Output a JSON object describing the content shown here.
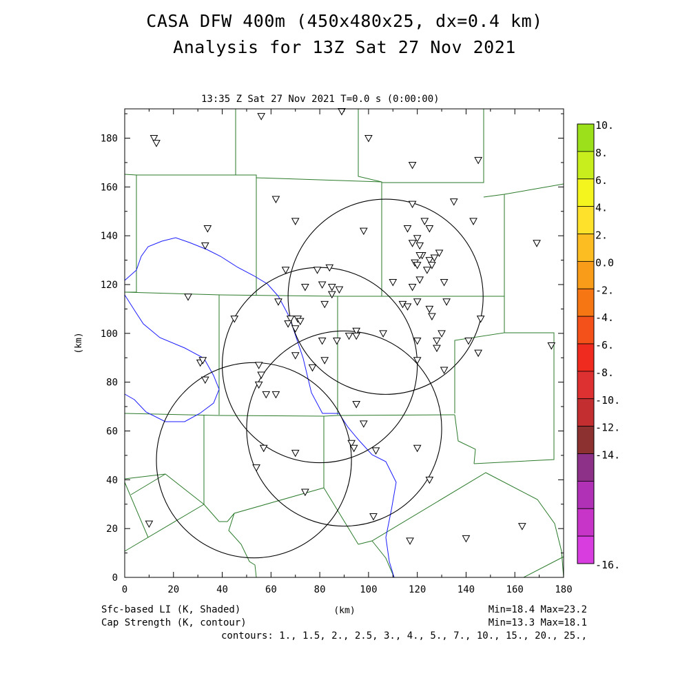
{
  "title_line1": "CASA DFW 400m (450x480x25, dx=0.4 km)",
  "title_line2": "Analysis for 13Z Sat 27 Nov 2021",
  "valid_time": "13:35 Z Sat 27 Nov 2021    T=0.0 s (0:00:00)",
  "x_label": "(km)",
  "y_label": "(km)",
  "x_ticks": [
    "0",
    "20",
    "40",
    "60",
    "80",
    "100",
    "120",
    "140",
    "160",
    "180"
  ],
  "y_ticks": [
    "0",
    "20",
    "40",
    "60",
    "80",
    "100",
    "120",
    "140",
    "160",
    "180"
  ],
  "colorbar_labels": [
    "10.",
    "8.",
    "6.",
    "4.",
    "2.",
    "0.0",
    "-2.",
    "-4.",
    "-6.",
    "-8.",
    "-10.",
    "-12.",
    "-14.",
    "-16."
  ],
  "colorbar_colors": [
    "#9be01a",
    "#c8ee1e",
    "#f4f51e",
    "#fde12a",
    "#fbbd22",
    "#f99c19",
    "#f77614",
    "#f4501a",
    "#ee2b1e",
    "#dd3030",
    "#c32e31",
    "#8c3030",
    "#8c3088",
    "#b031b6",
    "#c735c8",
    "#d73ddf"
  ],
  "footer": {
    "left1": "Sfc-based LI (K, Shaded)",
    "left2": "Cap Strength (K, contour)",
    "center": "(km)",
    "right1": "Min=18.4 Max=23.2",
    "right2": "Min=13.3 Max=18.1",
    "contours": "contours: 1., 1.5, 2., 2.5, 3., 4., 5., 7., 10., 15., 20., 25.,"
  },
  "map_colors": {
    "county_lines": "#2a7a2a",
    "water": "#1a1aff",
    "radar_rings": "#000000",
    "stations": "#000000"
  },
  "radar_sites": [
    {
      "x": 107,
      "y": 115,
      "r": 40
    },
    {
      "x": 80,
      "y": 87,
      "r": 40
    },
    {
      "x": 90,
      "y": 61,
      "r": 40
    },
    {
      "x": 53,
      "y": 48,
      "r": 40
    }
  ],
  "stations": [
    [
      12,
      180
    ],
    [
      13,
      178
    ],
    [
      56,
      189
    ],
    [
      89,
      191
    ],
    [
      100,
      180
    ],
    [
      118,
      169
    ],
    [
      145,
      171
    ],
    [
      62,
      155
    ],
    [
      118,
      153
    ],
    [
      135,
      154
    ],
    [
      143,
      146
    ],
    [
      123,
      146
    ],
    [
      70,
      146
    ],
    [
      98,
      142
    ],
    [
      116,
      143
    ],
    [
      125,
      143
    ],
    [
      34,
      143
    ],
    [
      33,
      136
    ],
    [
      120,
      139
    ],
    [
      118,
      137
    ],
    [
      121,
      136
    ],
    [
      122,
      132
    ],
    [
      121,
      132
    ],
    [
      125,
      130
    ],
    [
      127,
      131
    ],
    [
      129,
      133
    ],
    [
      126,
      128
    ],
    [
      119,
      129
    ],
    [
      120,
      128
    ],
    [
      124,
      126
    ],
    [
      84,
      127
    ],
    [
      79,
      126
    ],
    [
      66,
      126
    ],
    [
      131,
      121
    ],
    [
      110,
      121
    ],
    [
      121,
      122
    ],
    [
      118,
      119
    ],
    [
      81,
      120
    ],
    [
      88,
      118
    ],
    [
      85,
      119
    ],
    [
      74,
      119
    ],
    [
      85,
      116
    ],
    [
      120,
      113
    ],
    [
      114,
      112
    ],
    [
      116,
      111
    ],
    [
      132,
      113
    ],
    [
      82,
      112
    ],
    [
      63,
      113
    ],
    [
      26,
      115
    ],
    [
      125,
      110
    ],
    [
      126,
      107
    ],
    [
      146,
      106
    ],
    [
      45,
      106
    ],
    [
      71,
      106
    ],
    [
      68,
      106
    ],
    [
      72,
      105
    ],
    [
      67,
      104
    ],
    [
      70,
      102
    ],
    [
      95,
      101
    ],
    [
      106,
      100
    ],
    [
      130,
      100
    ],
    [
      128,
      97
    ],
    [
      95,
      99
    ],
    [
      120,
      97
    ],
    [
      81,
      97
    ],
    [
      87,
      97
    ],
    [
      92,
      99
    ],
    [
      141,
      97
    ],
    [
      175,
      95
    ],
    [
      145,
      92
    ],
    [
      128,
      94
    ],
    [
      120,
      89
    ],
    [
      70,
      91
    ],
    [
      31,
      88
    ],
    [
      32,
      89
    ],
    [
      82,
      89
    ],
    [
      77,
      86
    ],
    [
      131,
      85
    ],
    [
      33,
      81
    ],
    [
      55,
      87
    ],
    [
      56,
      83
    ],
    [
      55,
      79
    ],
    [
      58,
      75
    ],
    [
      62,
      75
    ],
    [
      95,
      71
    ],
    [
      98,
      63
    ],
    [
      93,
      55
    ],
    [
      94,
      53
    ],
    [
      103,
      52
    ],
    [
      120,
      53
    ],
    [
      57,
      53
    ],
    [
      70,
      51
    ],
    [
      54,
      45
    ],
    [
      125,
      40
    ],
    [
      74,
      35
    ],
    [
      102,
      25
    ],
    [
      10,
      22
    ],
    [
      163,
      21
    ],
    [
      140,
      16
    ],
    [
      117,
      15
    ],
    [
      169,
      137
    ]
  ]
}
